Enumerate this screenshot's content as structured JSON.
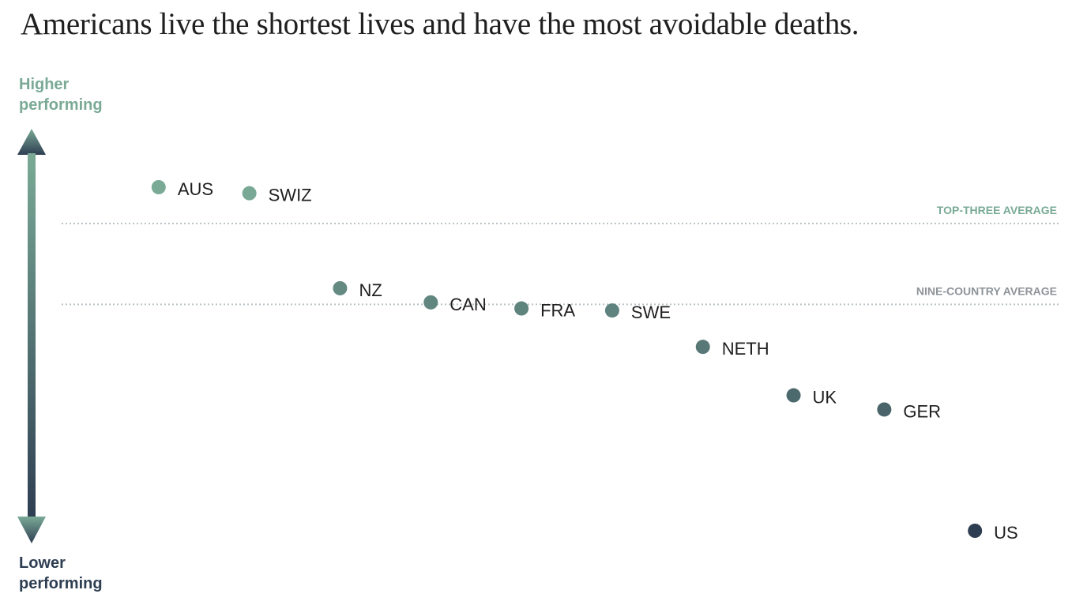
{
  "chart_data": {
    "type": "scatter",
    "title": "Americans live the shortest lives and have the most avoidable deaths.",
    "ylabel_high": "Higher\nperforming",
    "ylabel_low": "Lower\nperforming",
    "colors": {
      "high": "#7aaa96",
      "low": "#2e3e52",
      "reference": "#b9c2c6",
      "top_ref_label": "#7aaa96",
      "nine_ref_label": "#8d9399"
    },
    "reference_lines": [
      {
        "label": "TOP-THREE AVERAGE",
        "value": 81
      },
      {
        "label": "NINE-COUNTRY AVERAGE",
        "value": 61
      }
    ],
    "points": [
      {
        "label": "AUS",
        "x": 1,
        "y": 90
      },
      {
        "label": "SWIZ",
        "x": 2,
        "y": 88.5
      },
      {
        "label": "NZ",
        "x": 3,
        "y": 65
      },
      {
        "label": "CAN",
        "x": 4,
        "y": 61.5
      },
      {
        "label": "FRA",
        "x": 5,
        "y": 60
      },
      {
        "label": "SWE",
        "x": 6,
        "y": 59.5
      },
      {
        "label": "NETH",
        "x": 7,
        "y": 50.5
      },
      {
        "label": "UK",
        "x": 8,
        "y": 38.5
      },
      {
        "label": "GER",
        "x": 9,
        "y": 35
      },
      {
        "label": "US",
        "x": 10,
        "y": 5
      }
    ],
    "xlim": [
      0,
      11
    ],
    "ylim": [
      0,
      100
    ]
  }
}
